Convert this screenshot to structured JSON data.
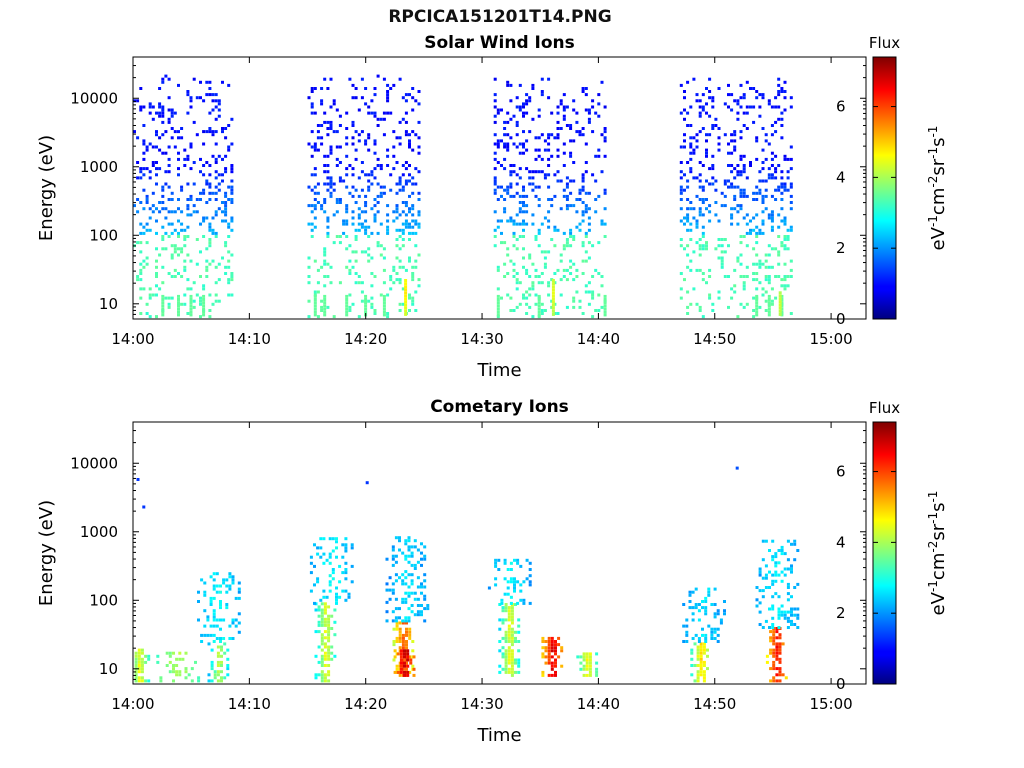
{
  "figure_title": "RPCICA151201T14.PNG",
  "colorbar": {
    "title": "Flux",
    "range": [
      0,
      7.4
    ],
    "ticks": [
      "0",
      "2",
      "4",
      "6"
    ],
    "tick_values": [
      0,
      2,
      4,
      6
    ],
    "label_parts": [
      "eV",
      "-1",
      "cm",
      "-2",
      "sr",
      "-1",
      "s",
      "-1"
    ],
    "colormap": "jet"
  },
  "chart_data": [
    {
      "type": "heatmap",
      "title": "Solar Wind Ions",
      "xlabel": "Time",
      "ylabel": "Energy (eV)",
      "xlim": [
        "14:00",
        "15:03"
      ],
      "yscale": "log",
      "ylim": [
        6,
        40000
      ],
      "xticks": [
        "14:00",
        "14:10",
        "14:20",
        "14:30",
        "14:40",
        "14:50",
        "15:00"
      ],
      "yticks": [
        "10",
        "100",
        "1000",
        "10000"
      ],
      "grid": false,
      "z_label": "Flux",
      "data_segments": [
        {
          "start": "14:00",
          "end": "14:08.5"
        },
        {
          "start": "14:15",
          "end": "14:24.5"
        },
        {
          "start": "14:31",
          "end": "14:40.5"
        },
        {
          "start": "14:47",
          "end": "14:56.5"
        }
      ],
      "high_energy_flux": 1,
      "mid_energy_flux": 2.5,
      "low_energy_flux": 3.3,
      "peaks": [
        {
          "time": "14:23.3",
          "energy": 15,
          "flux": 4.8
        },
        {
          "time": "14:36",
          "energy": 14,
          "flux": 4.5
        },
        {
          "time": "14:55.5",
          "energy": 10,
          "flux": 4.3
        }
      ]
    },
    {
      "type": "heatmap",
      "title": "Cometary Ions",
      "xlabel": "Time",
      "ylabel": "Energy (eV)",
      "xlim": [
        "14:00",
        "15:03"
      ],
      "yscale": "log",
      "ylim": [
        6,
        40000
      ],
      "xticks": [
        "14:00",
        "14:10",
        "14:20",
        "14:30",
        "14:40",
        "14:50",
        "15:00"
      ],
      "yticks": [
        "10",
        "100",
        "1000",
        "10000"
      ],
      "grid": false,
      "z_label": "Flux",
      "clusters": [
        {
          "time": "14:00.5",
          "e_min": 6,
          "e_max": 20,
          "flux": 4.6
        },
        {
          "time": "14:03.8",
          "e_min": 6,
          "e_max": 18,
          "flux": 4.0
        },
        {
          "time": "14:07.3",
          "e_min": 6,
          "e_max": 25,
          "flux": 4.2
        },
        {
          "time": "14:07.3",
          "e_min": 25,
          "e_max": 260,
          "flux": 2.8
        },
        {
          "time": "14:16.5",
          "e_min": 6,
          "e_max": 90,
          "flux": 4.5
        },
        {
          "time": "14:17",
          "e_min": 90,
          "e_max": 800,
          "flux": 2.8
        },
        {
          "time": "14:23.2",
          "e_min": 8,
          "e_max": 50,
          "flux": 6.0
        },
        {
          "time": "14:23.3",
          "e_min": 8,
          "e_max": 20,
          "flux": 7.0
        },
        {
          "time": "14:23.5",
          "e_min": 50,
          "e_max": 900,
          "flux": 2.6
        },
        {
          "time": "14:32.3",
          "e_min": 8,
          "e_max": 90,
          "flux": 4.5
        },
        {
          "time": "14:32.3",
          "e_min": 90,
          "e_max": 400,
          "flux": 2.7
        },
        {
          "time": "14:36",
          "e_min": 8,
          "e_max": 30,
          "flux": 6.8
        },
        {
          "time": "14:39",
          "e_min": 8,
          "e_max": 18,
          "flux": 4.7
        },
        {
          "time": "14:48.8",
          "e_min": 6,
          "e_max": 25,
          "flux": 5.0
        },
        {
          "time": "14:49",
          "e_min": 25,
          "e_max": 150,
          "flux": 2.6
        },
        {
          "time": "14:55.3",
          "e_min": 6,
          "e_max": 40,
          "flux": 6.5
        },
        {
          "time": "14:55.3",
          "e_min": 40,
          "e_max": 800,
          "flux": 2.7
        }
      ],
      "isolated_points": [
        {
          "time": "14:00.3",
          "energy": 5800,
          "flux": 1.3
        },
        {
          "time": "14:00.8",
          "energy": 2300,
          "flux": 1.3
        },
        {
          "time": "14:20",
          "energy": 5200,
          "flux": 1.3
        },
        {
          "time": "14:51.8",
          "energy": 8500,
          "flux": 1.5
        }
      ]
    }
  ]
}
